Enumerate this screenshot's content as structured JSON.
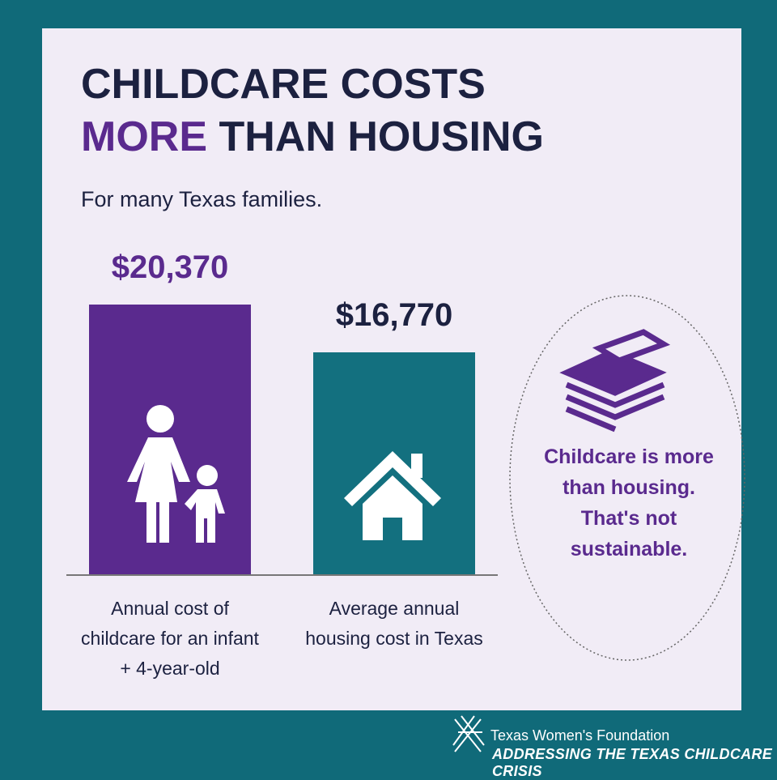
{
  "chart_data": {
    "type": "bar",
    "title_lines": [
      [
        "CHILDCARE COSTS"
      ],
      [
        "MORE",
        "THAN HOUSING"
      ]
    ],
    "subtitle": "For many Texas families.",
    "categories": [
      "Annual cost of childcare for an infant + 4-year-old",
      "Average annual housing cost in Texas"
    ],
    "values": [
      20370,
      16770
    ],
    "value_labels": [
      "$20,370",
      "$16,770"
    ],
    "colors": [
      "#5a2a8e",
      "#13707f"
    ],
    "value_label_colors": [
      "#5a2a8e",
      "#1c2140"
    ],
    "callout": "Childcare is more than housing. That's not sustainable.",
    "footer": {
      "organization": "Texas Women's Foundation",
      "campaign": "ADDRESSING THE TEXAS CHILDCARE CRISIS"
    }
  }
}
